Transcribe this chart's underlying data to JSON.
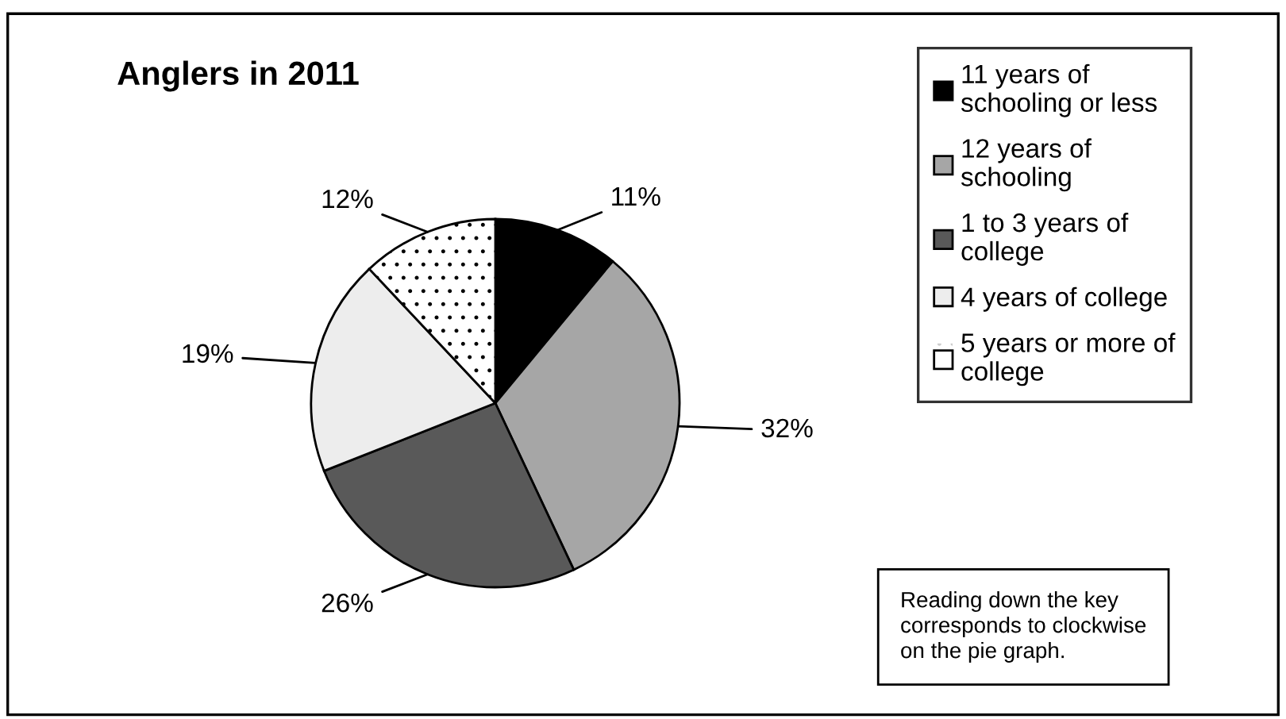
{
  "chart_data": {
    "type": "pie",
    "title": "Anglers in 2011",
    "categories": [
      "11 years of schooling or less",
      "12 years of schooling",
      "1 to 3 years of college",
      "4 years of college",
      "5 years or more of college"
    ],
    "values": [
      11,
      32,
      26,
      19,
      12
    ],
    "value_labels": [
      "11%",
      "32%",
      "26%",
      "19%",
      "12%"
    ],
    "colors": [
      "#000000",
      "#a6a6a6",
      "#595959",
      "#ededed",
      "#ffffff"
    ],
    "legend": "right",
    "annotations": [
      "Reading down the key corresponds to clockwise on the pie graph."
    ]
  }
}
